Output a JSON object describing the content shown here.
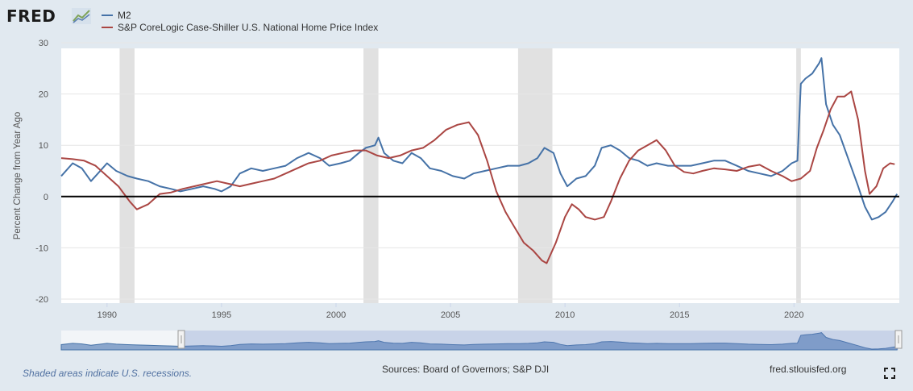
{
  "header": {
    "brand": "FRED"
  },
  "legend": [
    {
      "label": "M2",
      "color": "#4572a7"
    },
    {
      "label": "S&P CoreLogic Case-Shiller U.S. National Home Price Index",
      "color": "#aa4643"
    }
  ],
  "footer": {
    "note": "Shaded areas indicate U.S. recessions.",
    "sources": "Sources: Board of Governors; S&P DJI",
    "url": "fred.stlouisfed.org"
  },
  "icons": {
    "logo_mark": "graph-icon",
    "expand": "fullscreen-icon"
  },
  "chart_data": {
    "type": "line",
    "ylabel": "Percent Change from Year Ago",
    "xlabel": "",
    "xlim": [
      1988.0,
      2024.6
    ],
    "ylim": [
      -20,
      30
    ],
    "y_ticks": [
      30,
      20,
      10,
      0,
      -10,
      -20
    ],
    "x_ticks": [
      1990,
      1995,
      2000,
      2005,
      2010,
      2015,
      2020
    ],
    "zero_line": true,
    "grid": "horizontal",
    "recessions": [
      [
        1990.55,
        1991.2
      ],
      [
        2001.2,
        2001.85
      ],
      [
        2007.95,
        2009.45
      ],
      [
        2020.1,
        2020.3
      ]
    ],
    "series": [
      {
        "name": "M2",
        "color": "#4572a7",
        "x": [
          1988.0,
          1988.5,
          1988.9,
          1989.3,
          1989.6,
          1990.0,
          1990.4,
          1990.9,
          1991.3,
          1991.8,
          1992.3,
          1992.8,
          1993.2,
          1993.7,
          1994.2,
          1994.7,
          1995.0,
          1995.4,
          1995.8,
          1996.3,
          1996.8,
          1997.3,
          1997.8,
          1998.3,
          1998.8,
          1999.3,
          1999.7,
          2000.2,
          2000.6,
          2001.0,
          2001.3,
          2001.7,
          2001.85,
          2002.1,
          2002.5,
          2002.9,
          2003.3,
          2003.7,
          2004.1,
          2004.6,
          2005.1,
          2005.6,
          2006.0,
          2006.5,
          2007.0,
          2007.5,
          2008.0,
          2008.4,
          2008.8,
          2009.1,
          2009.5,
          2009.8,
          2010.1,
          2010.5,
          2010.9,
          2011.3,
          2011.6,
          2012.0,
          2012.4,
          2012.8,
          2013.2,
          2013.6,
          2014.0,
          2014.5,
          2015.0,
          2015.5,
          2016.0,
          2016.5,
          2017.0,
          2017.5,
          2018.0,
          2018.5,
          2019.0,
          2019.5,
          2019.9,
          2020.15,
          2020.3,
          2020.5,
          2020.8,
          2021.1,
          2021.2,
          2021.4,
          2021.7,
          2022.0,
          2022.4,
          2022.8,
          2023.1,
          2023.4,
          2023.7,
          2024.0,
          2024.3,
          2024.5
        ],
        "values": [
          4.0,
          6.5,
          5.5,
          3.0,
          4.5,
          6.5,
          5.0,
          4.0,
          3.5,
          3.0,
          2.0,
          1.5,
          1.0,
          1.5,
          2.0,
          1.5,
          1.0,
          2.0,
          4.5,
          5.5,
          5.0,
          5.5,
          6.0,
          7.5,
          8.5,
          7.5,
          6.0,
          6.5,
          7.0,
          8.5,
          9.5,
          10.0,
          11.5,
          8.5,
          7.0,
          6.5,
          8.5,
          7.5,
          5.5,
          5.0,
          4.0,
          3.5,
          4.5,
          5.0,
          5.5,
          6.0,
          6.0,
          6.5,
          7.5,
          9.5,
          8.5,
          4.5,
          2.0,
          3.5,
          4.0,
          6.0,
          9.5,
          10.0,
          9.0,
          7.5,
          7.0,
          6.0,
          6.5,
          6.0,
          6.0,
          6.0,
          6.5,
          7.0,
          7.0,
          6.0,
          5.0,
          4.5,
          4.0,
          5.0,
          6.5,
          7.0,
          22.0,
          23.0,
          24.0,
          26.0,
          27.0,
          18.0,
          14.0,
          12.0,
          7.0,
          2.0,
          -2.0,
          -4.5,
          -4.0,
          -3.0,
          -1.0,
          0.5
        ]
      },
      {
        "name": "S&P CoreLogic Case-Shiller U.S. National Home Price Index",
        "color": "#aa4643",
        "x": [
          1988.0,
          1988.5,
          1989.0,
          1989.5,
          1990.0,
          1990.5,
          1991.0,
          1991.3,
          1991.8,
          1992.3,
          1992.8,
          1993.3,
          1993.8,
          1994.3,
          1994.8,
          1995.3,
          1995.8,
          1996.3,
          1996.8,
          1997.3,
          1997.8,
          1998.3,
          1998.8,
          1999.3,
          1999.8,
          2000.3,
          2000.8,
          2001.3,
          2001.8,
          2002.3,
          2002.8,
          2003.3,
          2003.8,
          2004.3,
          2004.8,
          2005.3,
          2005.8,
          2006.2,
          2006.6,
          2007.0,
          2007.4,
          2007.8,
          2008.2,
          2008.6,
          2009.0,
          2009.2,
          2009.6,
          2010.0,
          2010.3,
          2010.6,
          2010.9,
          2011.3,
          2011.7,
          2012.0,
          2012.4,
          2012.8,
          2013.2,
          2013.6,
          2014.0,
          2014.4,
          2014.8,
          2015.2,
          2015.6,
          2016.0,
          2016.5,
          2017.0,
          2017.5,
          2018.0,
          2018.5,
          2019.0,
          2019.5,
          2019.9,
          2020.3,
          2020.7,
          2021.0,
          2021.3,
          2021.6,
          2021.9,
          2022.2,
          2022.5,
          2022.8,
          2023.1,
          2023.3,
          2023.6,
          2023.9,
          2024.2,
          2024.4
        ],
        "values": [
          7.5,
          7.3,
          7.0,
          6.0,
          4.0,
          2.0,
          -1.0,
          -2.5,
          -1.5,
          0.5,
          0.8,
          1.5,
          2.0,
          2.5,
          3.0,
          2.5,
          2.0,
          2.5,
          3.0,
          3.5,
          4.5,
          5.5,
          6.5,
          7.0,
          8.0,
          8.5,
          9.0,
          9.0,
          8.0,
          7.5,
          8.0,
          9.0,
          9.5,
          11.0,
          13.0,
          14.0,
          14.5,
          12.0,
          7.0,
          1.0,
          -3.0,
          -6.0,
          -9.0,
          -10.5,
          -12.5,
          -13.0,
          -9.0,
          -4.0,
          -1.5,
          -2.5,
          -4.0,
          -4.5,
          -4.0,
          -1.0,
          3.5,
          7.0,
          9.0,
          10.0,
          11.0,
          9.0,
          6.0,
          4.8,
          4.5,
          5.0,
          5.5,
          5.3,
          5.0,
          5.8,
          6.2,
          5.0,
          4.0,
          3.0,
          3.5,
          5.0,
          9.5,
          13.0,
          17.0,
          19.5,
          19.5,
          20.5,
          15.0,
          5.0,
          0.5,
          2.0,
          5.5,
          6.5,
          6.3
        ]
      }
    ]
  }
}
